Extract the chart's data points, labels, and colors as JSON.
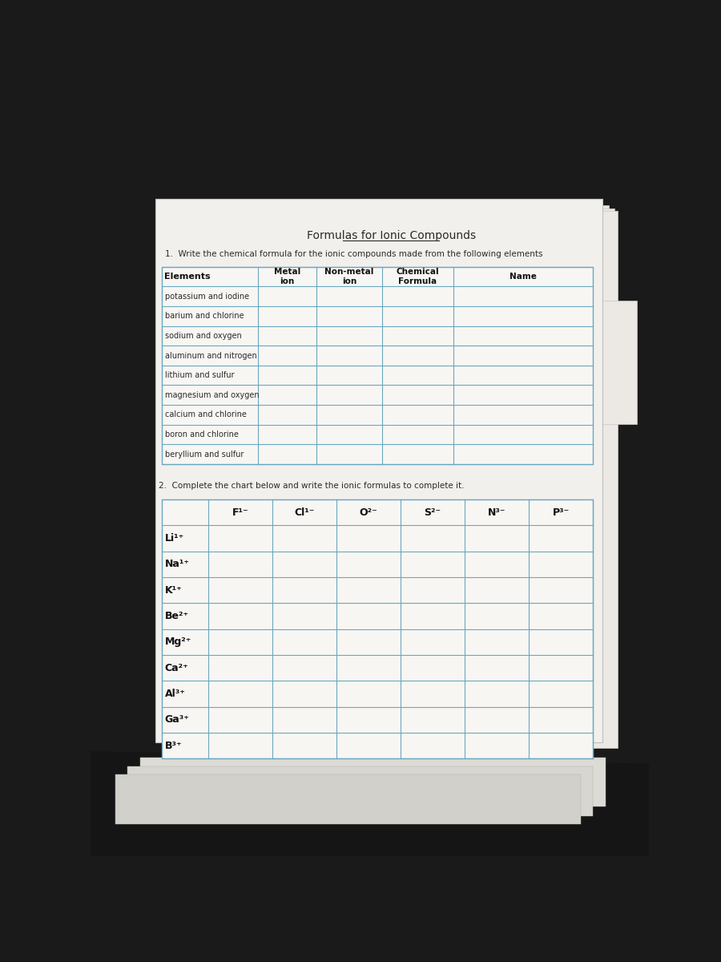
{
  "title": "Formulas for Ionic Compounds",
  "q1_instruction": "1.  Write the chemical formula for the ionic compounds made from the following elements",
  "q1_headers": [
    "Elements",
    "Metal\nion",
    "Non-metal\nion",
    "Chemical\nFormula",
    "Name"
  ],
  "q1_rows": [
    "potassium and iodine",
    "barium and chlorine",
    "sodium and oxygen",
    "aluminum and nitrogen",
    "lithium and sulfur",
    "magnesium and oxygen",
    "calcium and chlorine",
    "boron and chlorine",
    "beryllium and sulfur"
  ],
  "q2_instruction": "2.  Complete the chart below and write the ionic formulas to complete it.",
  "q2_col_headers": [
    "F¹⁻",
    "Cl¹⁻",
    "O²⁻",
    "S²⁻",
    "N³⁻",
    "P³⁻"
  ],
  "q2_row_headers": [
    "Li¹⁺",
    "Na¹⁺",
    "K¹⁺",
    "Be²⁺",
    "Mg²⁺",
    "Ca²⁺",
    "Al³⁺",
    "Ga³⁺",
    "B³⁺"
  ],
  "bg_dark": "#1a1a1a",
  "paper_color": "#f2f0ed",
  "paper_shadow": "#d0cec9",
  "table_line_color": "#6aa8c0",
  "text_color": "#2a2a2a",
  "header_text_color": "#111111",
  "title_fontsize": 10,
  "body_fontsize": 7.5,
  "header_fontsize": 8,
  "q2_label_fontsize": 9
}
